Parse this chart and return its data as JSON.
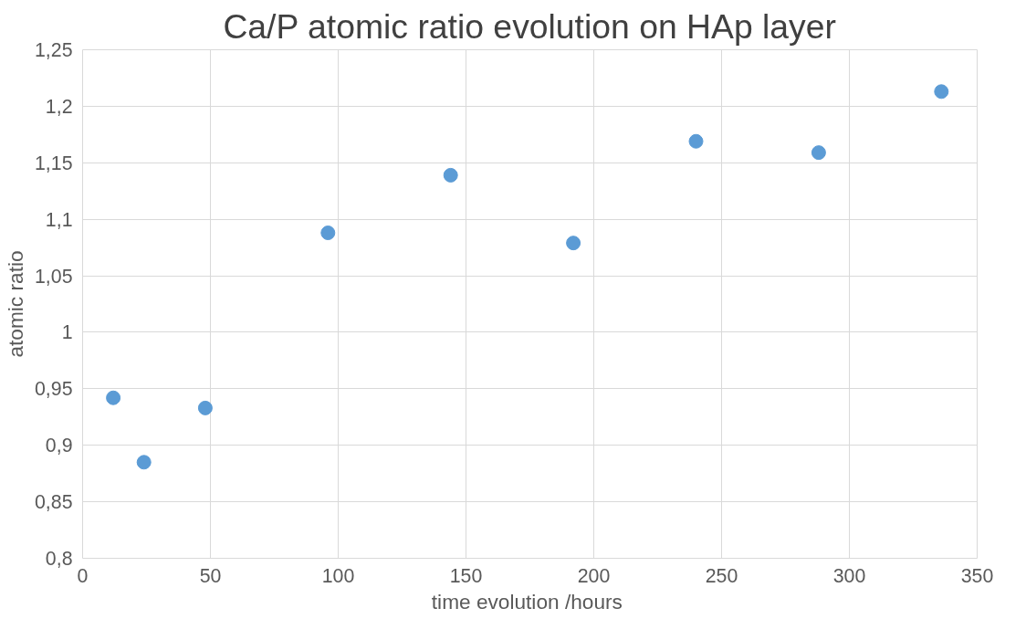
{
  "chart_data": {
    "type": "scatter",
    "title": "Ca/P atomic ratio evolution on HAp layer",
    "xlabel": "time evolution  /hours",
    "ylabel": "atomic ratio",
    "x": [
      12,
      24,
      48,
      96,
      144,
      192,
      240,
      288,
      336
    ],
    "series": [
      {
        "color": "#5b9bd5",
        "values": [
          0.942,
          0.885,
          0.933,
          1.088,
          1.139,
          1.079,
          1.169,
          1.159,
          1.213
        ]
      }
    ],
    "xlim": [
      0,
      350
    ],
    "xticks": [
      0,
      50,
      100,
      150,
      200,
      250,
      300,
      350
    ],
    "ylim": [
      0.8,
      1.25
    ],
    "yticks": [
      {
        "value": 0.8,
        "label": "0,8"
      },
      {
        "value": 0.85,
        "label": "0,85"
      },
      {
        "value": 0.9,
        "label": "0,9"
      },
      {
        "value": 0.95,
        "label": "0,95"
      },
      {
        "value": 1,
        "label": "1"
      },
      {
        "value": 1.05,
        "label": "1,05"
      },
      {
        "value": 1.1,
        "label": "1,1"
      },
      {
        "value": 1.15,
        "label": "1,15"
      },
      {
        "value": 1.2,
        "label": "1,2"
      },
      {
        "value": 1.25,
        "label": "1,25"
      }
    ],
    "grid": true,
    "marker": "circle"
  }
}
